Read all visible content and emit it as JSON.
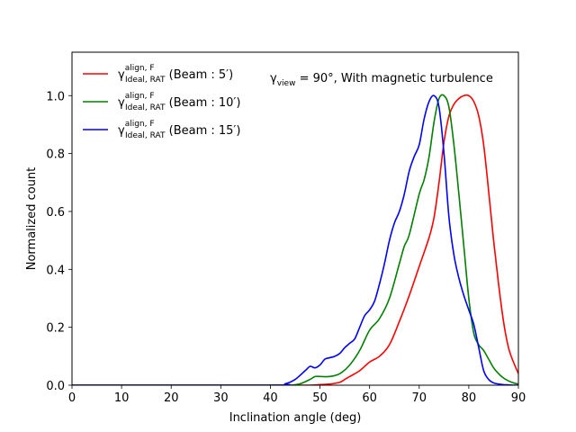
{
  "chart_data": {
    "type": "line",
    "xlabel": "Inclination angle (deg)",
    "ylabel": "Normalized count",
    "xlim": [
      0,
      90
    ],
    "ylim": [
      0,
      1.15
    ],
    "xticks": [
      0,
      10,
      20,
      30,
      40,
      50,
      60,
      70,
      80,
      90
    ],
    "yticks": [
      0.0,
      0.2,
      0.4,
      0.6,
      0.8,
      1.0
    ],
    "xtick_labels": [
      "0",
      "10",
      "20",
      "30",
      "40",
      "50",
      "60",
      "70",
      "80",
      "90"
    ],
    "ytick_labels": [
      "0.0",
      "0.2",
      "0.4",
      "0.6",
      "0.8",
      "1.0"
    ],
    "annotation": {
      "base": "γ",
      "sub": "view",
      "text": " = 90°, With magnetic turbulence"
    },
    "legend_position": "upper-left",
    "series": [
      {
        "name": "Beam: 5′",
        "label_base": "γ",
        "label_sup": "align, F",
        "label_sub": "Ideal, RAT",
        "label_text": " (Beam : 5′)",
        "color": "#ff0000",
        "x": [
          0,
          40,
          48,
          50,
          52,
          54,
          55,
          56,
          58,
          60,
          62,
          64,
          66,
          68,
          70,
          72,
          73,
          74,
          75,
          76,
          77,
          78,
          79,
          80,
          81,
          82,
          83,
          84,
          85,
          86,
          87,
          88,
          89,
          90
        ],
        "y": [
          0,
          0,
          0,
          0.002,
          0.004,
          0.01,
          0.02,
          0.03,
          0.05,
          0.08,
          0.1,
          0.14,
          0.22,
          0.31,
          0.41,
          0.51,
          0.58,
          0.7,
          0.84,
          0.93,
          0.97,
          0.99,
          1.0,
          1.0,
          0.98,
          0.93,
          0.83,
          0.67,
          0.5,
          0.35,
          0.22,
          0.13,
          0.08,
          0.04
        ]
      },
      {
        "name": "Beam: 10′",
        "label_base": "γ",
        "label_sup": "align, F",
        "label_sub": "Ideal, RAT",
        "label_text": " (Beam : 10′)",
        "color": "#008000",
        "x": [
          0,
          40,
          44,
          46,
          48,
          49,
          50,
          52,
          54,
          56,
          58,
          60,
          62,
          64,
          66,
          67,
          68,
          70,
          71,
          72,
          73,
          74,
          75,
          76,
          77,
          78,
          79,
          80,
          81,
          82,
          83,
          84,
          85,
          86,
          87,
          88,
          89,
          90
        ],
        "y": [
          0,
          0,
          0,
          0.005,
          0.02,
          0.03,
          0.03,
          0.03,
          0.04,
          0.07,
          0.12,
          0.19,
          0.23,
          0.3,
          0.42,
          0.48,
          0.52,
          0.66,
          0.71,
          0.79,
          0.91,
          0.99,
          1.0,
          0.96,
          0.83,
          0.66,
          0.48,
          0.3,
          0.18,
          0.14,
          0.12,
          0.09,
          0.06,
          0.04,
          0.025,
          0.015,
          0.008,
          0.004
        ]
      },
      {
        "name": "Beam: 15′",
        "label_base": "γ",
        "label_sup": "align, F",
        "label_sub": "Ideal, RAT",
        "label_text": " (Beam : 15′)",
        "color": "#0000ff",
        "x": [
          0,
          40,
          43,
          45,
          47,
          48,
          49,
          50,
          51,
          52,
          53,
          54,
          55,
          56,
          57,
          58,
          59,
          60,
          61,
          62,
          63,
          64,
          65,
          66,
          67,
          68,
          69,
          70,
          71,
          72,
          73,
          74,
          75,
          76,
          77,
          78,
          79,
          80,
          81,
          82,
          83,
          84,
          85,
          86,
          87,
          88,
          89,
          90
        ],
        "y": [
          0,
          0,
          0.005,
          0.02,
          0.05,
          0.065,
          0.06,
          0.07,
          0.09,
          0.095,
          0.1,
          0.11,
          0.13,
          0.145,
          0.16,
          0.2,
          0.24,
          0.26,
          0.29,
          0.35,
          0.42,
          0.5,
          0.56,
          0.6,
          0.66,
          0.74,
          0.79,
          0.83,
          0.92,
          0.98,
          1.0,
          0.96,
          0.8,
          0.58,
          0.45,
          0.37,
          0.31,
          0.26,
          0.21,
          0.13,
          0.05,
          0.02,
          0.008,
          0.004,
          0.002,
          0.001,
          0,
          0
        ]
      }
    ]
  }
}
